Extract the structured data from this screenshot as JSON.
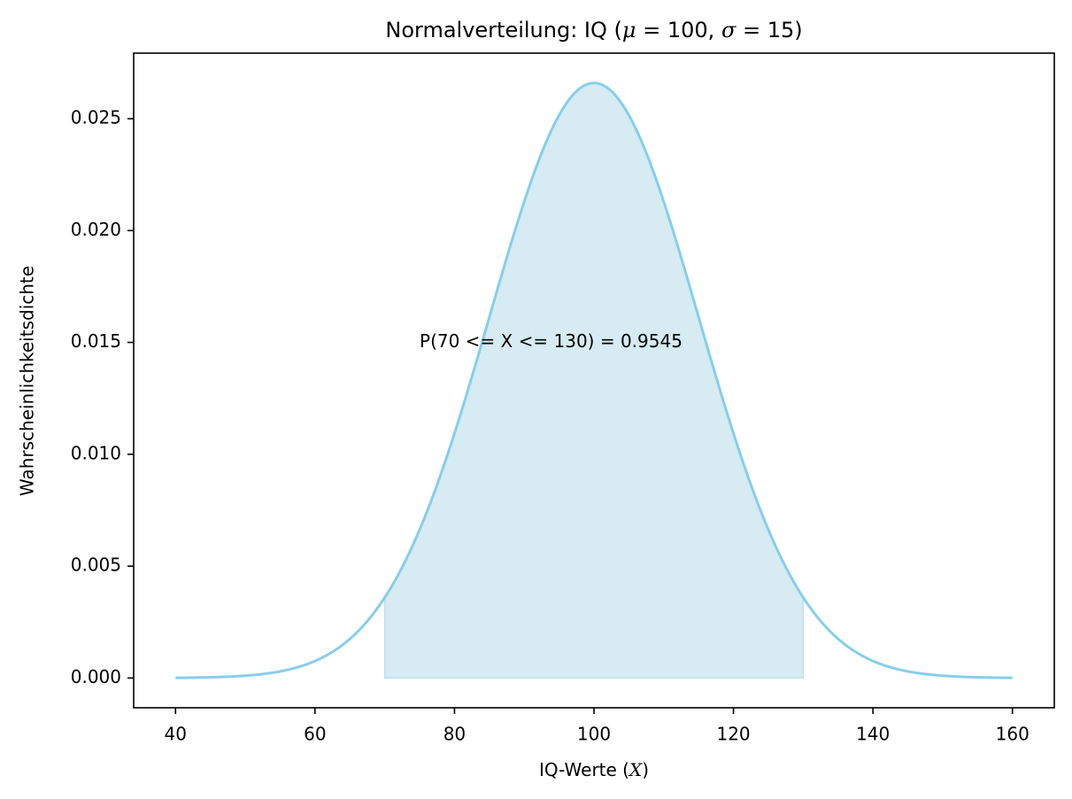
{
  "chart_data": {
    "type": "area",
    "title": {
      "prefix": "Normalverteilung: IQ (",
      "mu_symbol": "μ",
      "mu_text": " = 100, ",
      "sigma_symbol": "σ",
      "sigma_text": " = 15)",
      "suffix": ""
    },
    "xlabel": {
      "prefix": "IQ-Werte (",
      "var": "X",
      "suffix": ")"
    },
    "ylabel": "Wahrscheinlichkeitsdichte",
    "xlim": [
      34,
      166
    ],
    "ylim": [
      -0.00133,
      0.02793
    ],
    "xticks": [
      40,
      60,
      80,
      100,
      120,
      140,
      160
    ],
    "xtick_labels": [
      "40",
      "60",
      "80",
      "100",
      "120",
      "140",
      "160"
    ],
    "yticks": [
      0.0,
      0.005,
      0.01,
      0.015,
      0.02,
      0.025
    ],
    "ytick_labels": [
      "0.000",
      "0.005",
      "0.010",
      "0.015",
      "0.020",
      "0.025"
    ],
    "distribution": {
      "mu": 100,
      "sigma": 15
    },
    "curve_range": [
      40,
      160
    ],
    "shaded_range": [
      70,
      130
    ],
    "annotation": {
      "text": "P(70 <= X <= 130) = 0.9545",
      "x": 75,
      "y": 0.015
    },
    "colors": {
      "line": "#87ceeb",
      "fill": "#add8e6"
    },
    "grid": false,
    "legend": "none"
  }
}
